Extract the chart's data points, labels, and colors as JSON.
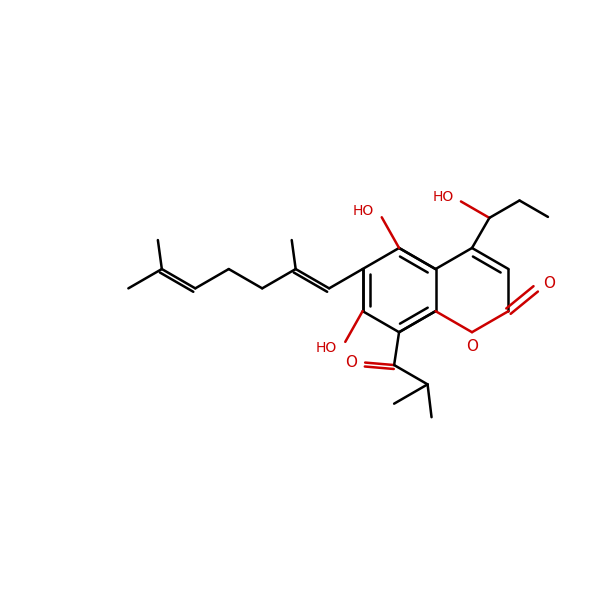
{
  "bg_color": "#ffffff",
  "bond_color": "#000000",
  "heteroatom_color": "#cc0000",
  "lw": 1.8,
  "fs": 10,
  "figsize": [
    6.0,
    6.0
  ],
  "dpi": 100,
  "xlim": [
    0,
    12
  ],
  "ylim": [
    0,
    12
  ]
}
